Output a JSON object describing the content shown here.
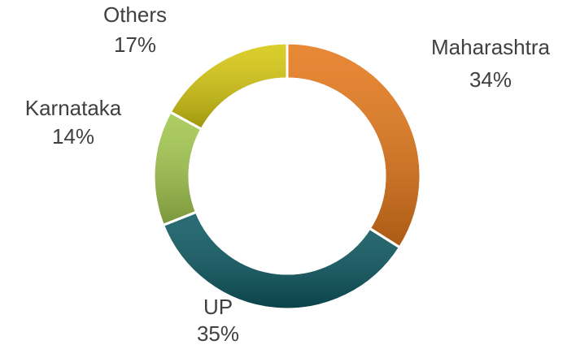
{
  "chart_data": {
    "type": "donut",
    "categories": [
      "Maharashtra",
      "UP",
      "Karnataka",
      "Others"
    ],
    "values": [
      34,
      35,
      14,
      17
    ],
    "value_labels": [
      "34%",
      "35%",
      "14%",
      "17%"
    ],
    "colors": [
      "#e4781a",
      "#0d5861",
      "#a3c84e",
      "#d6c810"
    ]
  }
}
